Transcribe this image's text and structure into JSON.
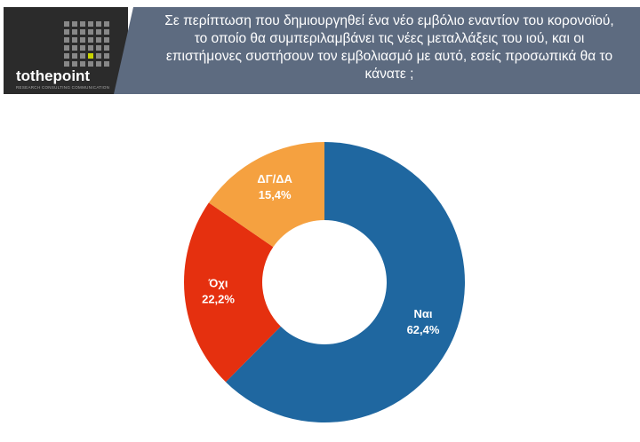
{
  "logo": {
    "name": "tothepoint",
    "tagline": "RESEARCH CONSULTING COMMUNICATION"
  },
  "chart_data": {
    "type": "donut",
    "title": "Σε περίπτωση που δημιουργηθεί ένα νέο εμβόλιο εναντίον του κορονοϊού, το οποίο θα συμπεριλαμβάνει τις νέες μεταλλάξεις του ιού, και οι επιστήμονες συστήσουν τον εμβολιασμό με αυτό, εσείς προσωπικά θα το κάνατε ;",
    "categories": [
      "Ναι",
      "Όχι",
      "ΔΓ/ΔΑ"
    ],
    "values": [
      62.4,
      22.2,
      15.4
    ],
    "value_labels": [
      "62,4%",
      "22,2%",
      "15,4%"
    ],
    "colors": [
      "#1f67a0",
      "#e5300f",
      "#f5a140"
    ]
  }
}
